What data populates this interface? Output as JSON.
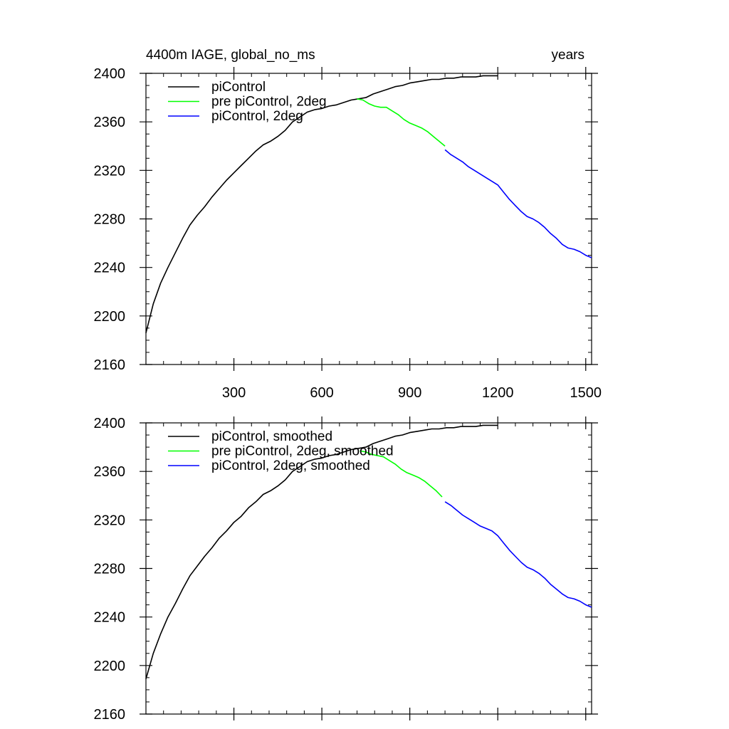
{
  "chart_data": [
    {
      "type": "line",
      "title_left": "4400m IAGE, global_no_ms",
      "title_right": "years",
      "xlim": [
        0,
        1520
      ],
      "ylim": [
        2160,
        2400
      ],
      "x_ticks": [
        300,
        600,
        900,
        1200,
        1500
      ],
      "y_ticks": [
        2160,
        2200,
        2240,
        2280,
        2320,
        2360,
        2400
      ],
      "x_tick_labels": [
        "300",
        "600",
        "900",
        "1200",
        "1500"
      ],
      "y_tick_labels": [
        "2160",
        "2200",
        "2240",
        "2280",
        "2320",
        "2360",
        "2400"
      ],
      "grid": false,
      "legend_position": "top-left",
      "series": [
        {
          "name": "piControl",
          "color": "#000000",
          "x": [
            0,
            25,
            50,
            75,
            100,
            125,
            150,
            175,
            200,
            225,
            250,
            275,
            300,
            325,
            350,
            375,
            400,
            425,
            450,
            475,
            500,
            525,
            550,
            575,
            600,
            625,
            650,
            675,
            700,
            725,
            750,
            775,
            800,
            825,
            850,
            875,
            900,
            925,
            950,
            975,
            1000,
            1025,
            1050,
            1075,
            1100,
            1125,
            1150,
            1175,
            1200
          ],
          "y": [
            2186,
            2210,
            2227,
            2240,
            2252,
            2264,
            2275,
            2283,
            2290,
            2298,
            2305,
            2312,
            2318,
            2324,
            2330,
            2336,
            2341,
            2344,
            2348,
            2353,
            2360,
            2364,
            2368,
            2370,
            2371,
            2373,
            2374,
            2376,
            2378,
            2379,
            2380,
            2383,
            2385,
            2387,
            2389,
            2390,
            2392,
            2393,
            2394,
            2395,
            2395,
            2396,
            2396,
            2397,
            2397,
            2397,
            2398,
            2398,
            2398
          ]
        },
        {
          "name": "pre piControl, 2deg",
          "color": "#00ff00",
          "x": [
            720,
            740,
            760,
            780,
            800,
            820,
            840,
            860,
            880,
            900,
            920,
            940,
            960,
            980,
            1000,
            1020
          ],
          "y": [
            2379,
            2378,
            2375,
            2373,
            2372,
            2372,
            2369,
            2366,
            2362,
            2359,
            2357,
            2355,
            2352,
            2348,
            2344,
            2340
          ]
        },
        {
          "name": "piControl, 2deg",
          "color": "#0000ff",
          "x": [
            1020,
            1040,
            1060,
            1080,
            1100,
            1120,
            1140,
            1160,
            1180,
            1200,
            1220,
            1240,
            1260,
            1280,
            1300,
            1320,
            1340,
            1360,
            1380,
            1400,
            1420,
            1440,
            1460,
            1480,
            1500,
            1520
          ],
          "y": [
            2337,
            2333,
            2330,
            2327,
            2323,
            2320,
            2317,
            2314,
            2311,
            2308,
            2302,
            2296,
            2291,
            2286,
            2282,
            2280,
            2277,
            2273,
            2268,
            2264,
            2259,
            2256,
            2255,
            2253,
            2250,
            2248
          ]
        }
      ]
    },
    {
      "type": "line",
      "xlim": [
        0,
        1520
      ],
      "ylim": [
        2160,
        2400
      ],
      "x_ticks": [
        300,
        600,
        900,
        1200,
        1500
      ],
      "y_ticks": [
        2160,
        2200,
        2240,
        2280,
        2320,
        2360,
        2400
      ],
      "y_tick_labels": [
        "2160",
        "2200",
        "2240",
        "2280",
        "2320",
        "2360",
        "2400"
      ],
      "grid": false,
      "legend_position": "top-left",
      "series": [
        {
          "name": "piControl, smoothed",
          "color": "#000000",
          "x": [
            0,
            25,
            50,
            75,
            100,
            125,
            150,
            175,
            200,
            225,
            250,
            275,
            300,
            325,
            350,
            375,
            400,
            425,
            450,
            475,
            500,
            525,
            550,
            575,
            600,
            625,
            650,
            675,
            700,
            725,
            750,
            775,
            800,
            825,
            850,
            875,
            900,
            925,
            950,
            975,
            1000,
            1025,
            1050,
            1075,
            1100,
            1125,
            1150,
            1175,
            1200
          ],
          "y": [
            2189,
            2210,
            2226,
            2240,
            2251,
            2263,
            2274,
            2282,
            2290,
            2297,
            2305,
            2311,
            2318,
            2323,
            2330,
            2335,
            2341,
            2344,
            2348,
            2353,
            2360,
            2364,
            2368,
            2370,
            2371,
            2373,
            2374,
            2376,
            2378,
            2379,
            2380,
            2383,
            2385,
            2387,
            2389,
            2390,
            2392,
            2393,
            2394,
            2395,
            2395,
            2396,
            2396,
            2397,
            2397,
            2397,
            2398,
            2398,
            2398
          ]
        },
        {
          "name": "pre piControl, 2deg, smoothed",
          "color": "#00ff00",
          "x": [
            730,
            750,
            770,
            790,
            810,
            830,
            850,
            870,
            890,
            910,
            930,
            950,
            970,
            990,
            1010
          ],
          "y": [
            2377,
            2376,
            2374,
            2373,
            2372,
            2369,
            2366,
            2362,
            2359,
            2357,
            2355,
            2352,
            2348,
            2344,
            2339
          ]
        },
        {
          "name": "piControl, 2deg, smoothed",
          "color": "#0000ff",
          "x": [
            1020,
            1040,
            1060,
            1080,
            1100,
            1120,
            1140,
            1160,
            1180,
            1200,
            1220,
            1240,
            1260,
            1280,
            1300,
            1320,
            1340,
            1360,
            1380,
            1400,
            1420,
            1440,
            1460,
            1480,
            1500,
            1520
          ],
          "y": [
            2335,
            2332,
            2328,
            2324,
            2321,
            2318,
            2315,
            2313,
            2311,
            2307,
            2301,
            2295,
            2290,
            2285,
            2281,
            2279,
            2276,
            2272,
            2267,
            2263,
            2259,
            2256,
            2255,
            2253,
            2250,
            2248
          ]
        }
      ]
    }
  ]
}
